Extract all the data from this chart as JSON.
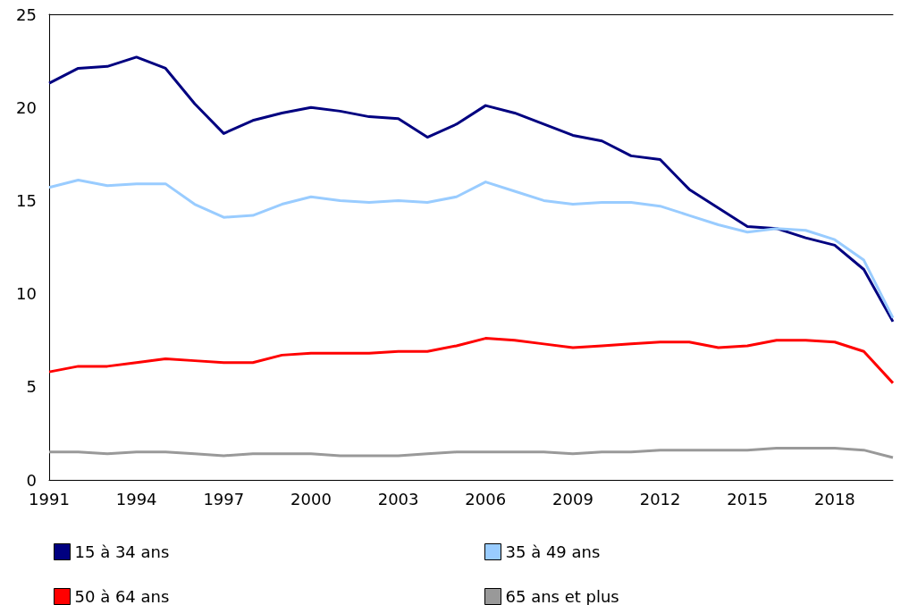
{
  "chart_data": {
    "type": "line",
    "categories": [
      "1991",
      null,
      null,
      "1994",
      null,
      null,
      "1997",
      null,
      null,
      "2000",
      null,
      null,
      "2003",
      null,
      null,
      "2006",
      null,
      null,
      "2009",
      null,
      null,
      "2012",
      null,
      null,
      "2015",
      null,
      null,
      "2018",
      null,
      null
    ],
    "series": [
      {
        "name": "15 à 34 ans",
        "color": "#000080",
        "values": [
          21.3,
          22.1,
          22.2,
          22.7,
          22.1,
          20.2,
          18.6,
          19.3,
          19.7,
          20.0,
          19.8,
          19.5,
          19.4,
          18.4,
          19.1,
          20.1,
          19.7,
          19.1,
          18.5,
          18.2,
          17.4,
          17.2,
          15.6,
          14.6,
          13.6,
          13.5,
          13.0,
          12.6,
          11.3,
          8.5
        ]
      },
      {
        "name": "35 à 49 ans",
        "color": "#99ccff",
        "values": [
          15.7,
          16.1,
          15.8,
          15.9,
          15.9,
          14.8,
          14.1,
          14.2,
          14.8,
          15.2,
          15.0,
          14.9,
          15.0,
          14.9,
          15.2,
          16.0,
          15.5,
          15.0,
          14.8,
          14.9,
          14.9,
          14.7,
          14.2,
          13.7,
          13.3,
          13.5,
          13.4,
          12.9,
          11.8,
          8.7
        ]
      },
      {
        "name": "50 à 64 ans",
        "color": "#ff0000",
        "values": [
          5.8,
          6.1,
          6.1,
          6.3,
          6.5,
          6.4,
          6.3,
          6.3,
          6.7,
          6.8,
          6.8,
          6.8,
          6.9,
          6.9,
          7.2,
          7.6,
          7.5,
          7.3,
          7.1,
          7.2,
          7.3,
          7.4,
          7.4,
          7.1,
          7.2,
          7.5,
          7.5,
          7.4,
          6.9,
          5.2
        ]
      },
      {
        "name": "65 ans et plus",
        "color": "#999999",
        "values": [
          1.5,
          1.5,
          1.4,
          1.5,
          1.5,
          1.4,
          1.3,
          1.4,
          1.4,
          1.4,
          1.3,
          1.3,
          1.3,
          1.4,
          1.5,
          1.5,
          1.5,
          1.5,
          1.4,
          1.5,
          1.5,
          1.6,
          1.6,
          1.6,
          1.6,
          1.7,
          1.7,
          1.7,
          1.6,
          1.2
        ]
      }
    ],
    "ylim": [
      0,
      25
    ],
    "yticks": [
      0,
      5,
      10,
      15,
      20,
      25
    ],
    "grid": false,
    "legend": "bottom",
    "marker": "none",
    "line_style": "solid"
  }
}
